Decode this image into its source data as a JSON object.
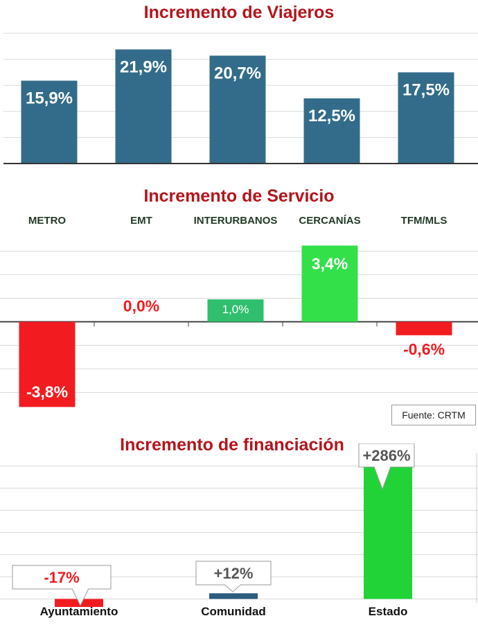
{
  "colors": {
    "title": "#b4141c",
    "viajeros_bar": "#336c8a",
    "negative": "#f21c20",
    "positive_light": "#33e04a",
    "positive_mid": "#2fbf6e",
    "estado": "#22d338",
    "comunidad": "#2b5c7e",
    "grid": "#d9d9d9"
  },
  "source": "Fuente: CRTM",
  "chart_data": [
    {
      "type": "bar",
      "title": "Incremento de Viajeros",
      "categories": [
        "METRO",
        "EMT",
        "INTERURBANOS",
        "CERCANÍAS",
        "TFM/MLS"
      ],
      "values": [
        15.9,
        21.9,
        20.7,
        12.5,
        17.5
      ],
      "value_labels": [
        "15,9%",
        "21,9%",
        "20,7%",
        "12,5%",
        "17,5%"
      ],
      "ylim": [
        0,
        25
      ],
      "grid": true
    },
    {
      "type": "bar",
      "title": "Incremento de Servicio",
      "categories": [
        "METRO",
        "EMT",
        "INTERURBANOS",
        "CERCANÍAS",
        "TFM/MLS"
      ],
      "values": [
        -3.8,
        0.0,
        1.0,
        3.4,
        -0.6
      ],
      "value_labels": [
        "-3,8%",
        "0,0%",
        "1,0%",
        "3,4%",
        "-0,6%"
      ],
      "ylim": [
        -4.5,
        4.0
      ],
      "grid": true
    },
    {
      "type": "bar",
      "title": "Incremento de financiación",
      "categories": [
        "Ayuntamiento",
        "Comunidad",
        "Estado"
      ],
      "values": [
        -17,
        12,
        286
      ],
      "value_labels": [
        "-17%",
        "+12%",
        "+286%"
      ],
      "ylim": [
        -20,
        330
      ],
      "grid": true
    }
  ]
}
